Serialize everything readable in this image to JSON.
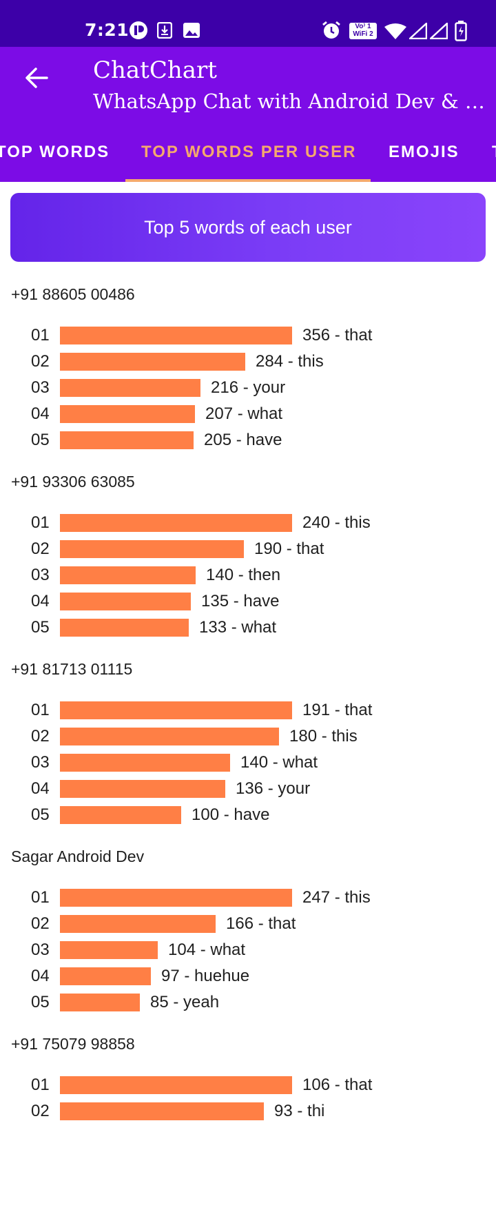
{
  "status": {
    "time": "7:21",
    "volte_label_top": "Vo⁾ 1",
    "volte_label_bottom": "WiFi 2"
  },
  "app_bar": {
    "title": "ChatChart",
    "subtitle": "WhatsApp Chat with Android Dev & P..."
  },
  "tabs": [
    {
      "label": "TOP WORDS"
    },
    {
      "label": "TOP WORDS PER USER"
    },
    {
      "label": "EMOJIS"
    },
    {
      "label": "T"
    }
  ],
  "active_tab": 1,
  "banner": {
    "text": "Top 5 words of each user"
  },
  "colors": {
    "bar": "#ff7f45",
    "app_bar": "#7c0ce6",
    "status_bar": "#3d00a8",
    "active_tab": "#f5a96d"
  },
  "users": [
    {
      "name": "+91 88605 00486",
      "words": [
        {
          "rank": "01",
          "count": 356,
          "word": "that",
          "label": "356 - that"
        },
        {
          "rank": "02",
          "count": 284,
          "word": "this",
          "label": "284 - this"
        },
        {
          "rank": "03",
          "count": 216,
          "word": "your",
          "label": "216 - your"
        },
        {
          "rank": "04",
          "count": 207,
          "word": "what",
          "label": "207 - what"
        },
        {
          "rank": "05",
          "count": 205,
          "word": "have",
          "label": "205 - have"
        }
      ]
    },
    {
      "name": "+91 93306 63085",
      "words": [
        {
          "rank": "01",
          "count": 240,
          "word": "this",
          "label": "240 - this"
        },
        {
          "rank": "02",
          "count": 190,
          "word": "that",
          "label": "190 - that"
        },
        {
          "rank": "03",
          "count": 140,
          "word": "then",
          "label": "140 - then"
        },
        {
          "rank": "04",
          "count": 135,
          "word": "have",
          "label": "135 - have"
        },
        {
          "rank": "05",
          "count": 133,
          "word": "what",
          "label": "133 - what"
        }
      ]
    },
    {
      "name": "+91 81713 01115",
      "words": [
        {
          "rank": "01",
          "count": 191,
          "word": "that",
          "label": "191 - that"
        },
        {
          "rank": "02",
          "count": 180,
          "word": "this",
          "label": "180 - this"
        },
        {
          "rank": "03",
          "count": 140,
          "word": "what",
          "label": "140 - what"
        },
        {
          "rank": "04",
          "count": 136,
          "word": "your",
          "label": "136 - your"
        },
        {
          "rank": "05",
          "count": 100,
          "word": "have",
          "label": "100 - have"
        }
      ]
    },
    {
      "name": "Sagar Android Dev",
      "words": [
        {
          "rank": "01",
          "count": 247,
          "word": "this",
          "label": "247 - this"
        },
        {
          "rank": "02",
          "count": 166,
          "word": "that",
          "label": "166 - that"
        },
        {
          "rank": "03",
          "count": 104,
          "word": "what",
          "label": "104 - what"
        },
        {
          "rank": "04",
          "count": 97,
          "word": "huehue",
          "label": "97 - huehue"
        },
        {
          "rank": "05",
          "count": 85,
          "word": "yeah",
          "label": "85 - yeah"
        }
      ]
    },
    {
      "name": "+91 75079 98858",
      "words": [
        {
          "rank": "01",
          "count": 106,
          "word": "that",
          "label": "106 - that"
        },
        {
          "rank": "02",
          "count": 93,
          "word": "thi",
          "label": "93 - thi"
        }
      ]
    }
  ]
}
